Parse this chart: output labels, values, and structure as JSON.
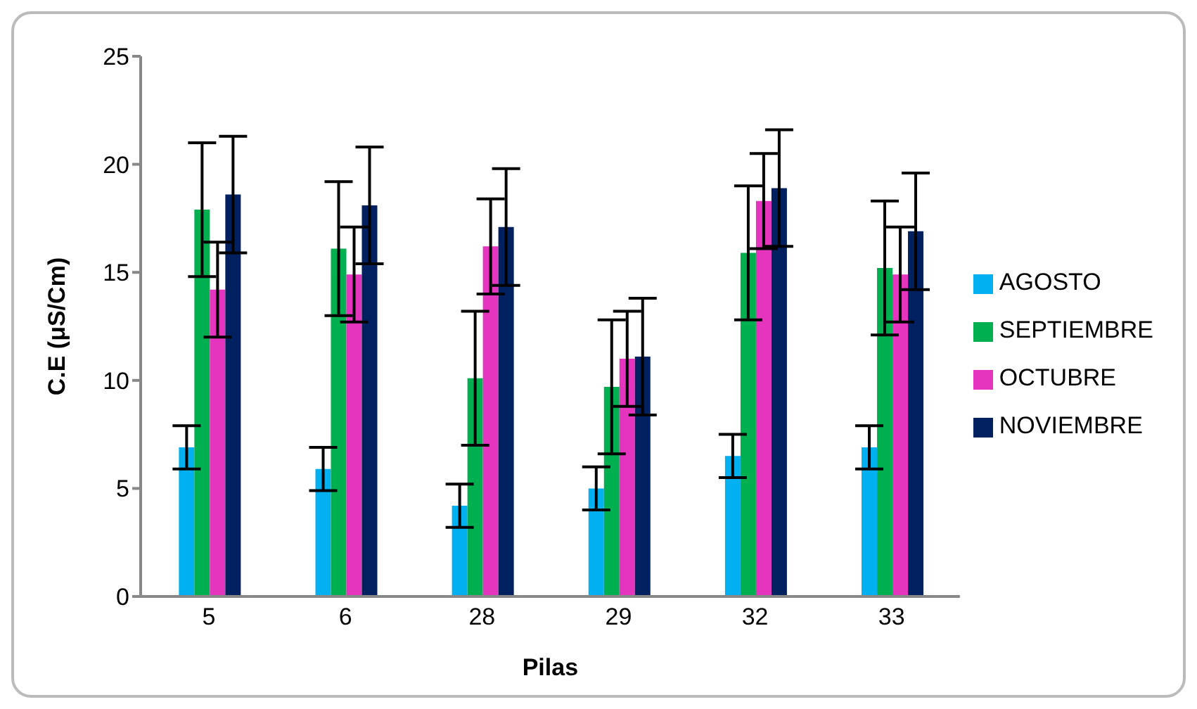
{
  "chart_data": {
    "type": "bar",
    "xlabel": "Pilas",
    "ylabel": "C.E (μS/Cm)",
    "categories": [
      "5",
      "6",
      "28",
      "29",
      "32",
      "33"
    ],
    "series": [
      {
        "name": "AGOSTO",
        "color": "#00b0f0",
        "values": [
          6.9,
          5.9,
          4.2,
          5.0,
          6.5,
          6.9
        ],
        "errors": [
          1.0,
          1.0,
          1.0,
          1.0,
          1.0,
          1.0
        ]
      },
      {
        "name": "SEPTIEMBRE",
        "color": "#00b050",
        "values": [
          17.9,
          16.1,
          10.1,
          9.7,
          15.9,
          15.2
        ],
        "errors": [
          3.1,
          3.1,
          3.1,
          3.1,
          3.1,
          3.1
        ]
      },
      {
        "name": "OCTUBRE",
        "color": "#e535be",
        "values": [
          14.2,
          14.9,
          16.2,
          11.0,
          18.3,
          14.9
        ],
        "errors": [
          2.2,
          2.2,
          2.2,
          2.2,
          2.2,
          2.2
        ]
      },
      {
        "name": "NOVIEMBRE",
        "color": "#002060",
        "values": [
          18.6,
          18.1,
          17.1,
          11.1,
          18.9,
          16.9
        ],
        "errors": [
          2.7,
          2.7,
          2.7,
          2.7,
          2.7,
          2.7
        ]
      }
    ],
    "ylim": [
      0,
      25
    ],
    "yticks": [
      0,
      5,
      10,
      15,
      20,
      25
    ],
    "grid": false,
    "legend": "right"
  }
}
